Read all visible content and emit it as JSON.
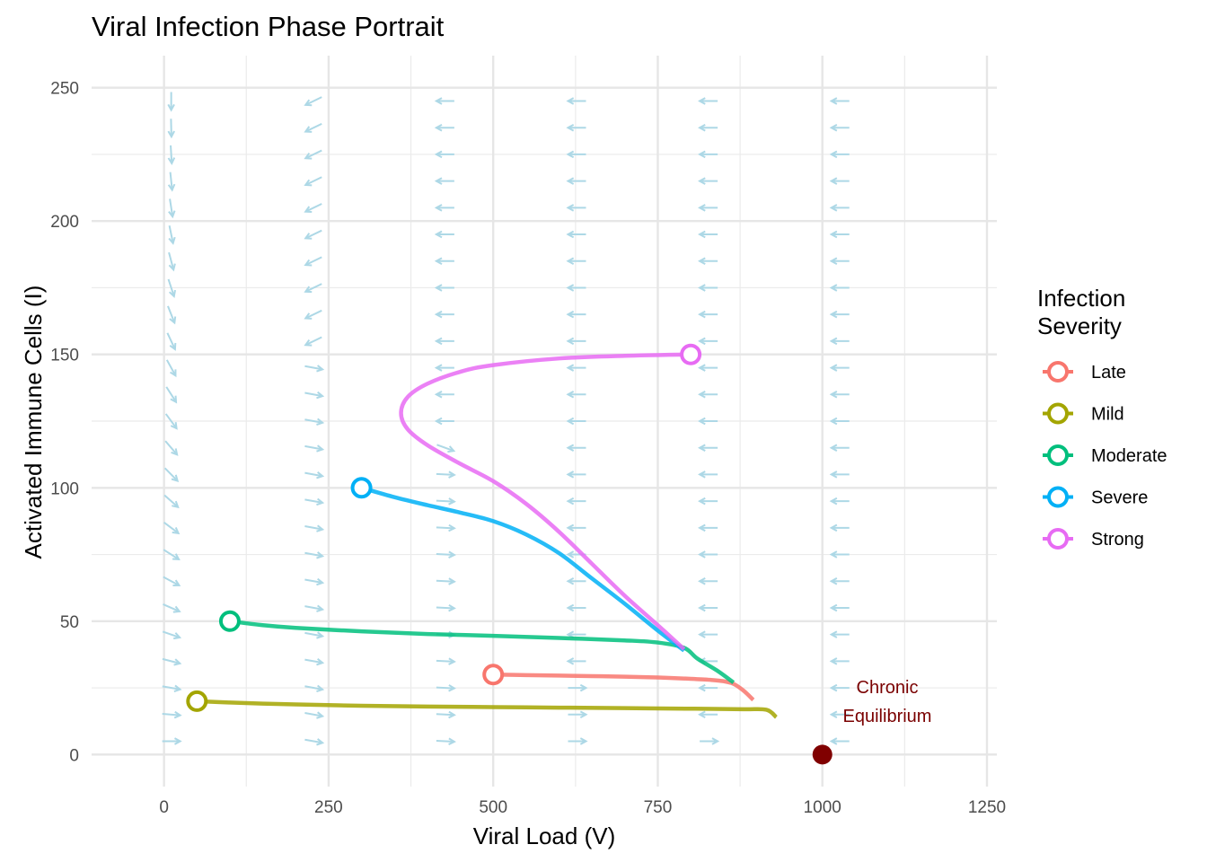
{
  "chart_data": {
    "type": "line",
    "title": "Viral Infection Phase Portrait",
    "xlabel": "Viral Load (V)",
    "ylabel": "Activated Immune Cells (I)",
    "xlim": [
      -110,
      1265
    ],
    "ylim": [
      -12,
      262
    ],
    "xticks": [
      0,
      250,
      500,
      750,
      1000,
      1250
    ],
    "yticks": [
      0,
      50,
      100,
      150,
      200,
      250
    ],
    "xtick_labels": [
      "0",
      "250",
      "500",
      "750",
      "1000",
      "1250"
    ],
    "ytick_labels": [
      "0",
      "50",
      "100",
      "150",
      "200",
      "250"
    ],
    "grid": true,
    "legend": {
      "title_lines": [
        "Infection",
        "Severity"
      ],
      "placement": "right",
      "entries": [
        "Late",
        "Mild",
        "Moderate",
        "Severe",
        "Strong"
      ]
    },
    "series": [
      {
        "name": "Late",
        "color": "#F8766D",
        "start": [
          500,
          30
        ],
        "x": [
          500,
          550,
          600,
          650,
          700,
          750,
          800,
          830,
          850,
          865,
          880,
          895
        ],
        "y": [
          30,
          29.8,
          29.6,
          29.4,
          29.2,
          28.9,
          28.4,
          28.0,
          27.5,
          26.5,
          24.0,
          20.5
        ]
      },
      {
        "name": "Mild",
        "color": "#A3A500",
        "start": [
          50,
          20
        ],
        "x": [
          50,
          100,
          150,
          200,
          300,
          400,
          500,
          600,
          700,
          800,
          880,
          915,
          930
        ],
        "y": [
          20,
          19.5,
          19.1,
          18.8,
          18.3,
          18.0,
          17.8,
          17.6,
          17.4,
          17.2,
          17.0,
          16.8,
          14.0
        ]
      },
      {
        "name": "Moderate",
        "color": "#00BF7D",
        "start": [
          100,
          50
        ],
        "x": [
          100,
          150,
          200,
          300,
          400,
          500,
          600,
          700,
          750,
          790,
          810,
          840,
          865
        ],
        "y": [
          50,
          48.5,
          47.5,
          46.2,
          45.2,
          44.5,
          43.7,
          42.8,
          42.0,
          40.0,
          36.0,
          31.5,
          27.0
        ]
      },
      {
        "name": "Severe",
        "color": "#00B0F6",
        "start": [
          300,
          100
        ],
        "x": [
          300,
          350,
          400,
          450,
          500,
          550,
          600,
          650,
          700,
          750,
          790
        ],
        "y": [
          100,
          96.5,
          93.5,
          90.7,
          87.5,
          82.5,
          75.5,
          66.0,
          56.5,
          46.5,
          39.0
        ]
      },
      {
        "name": "Strong",
        "color": "#E76BF3",
        "start": [
          800,
          150
        ],
        "x": [
          800,
          700,
          600,
          500,
          450,
          400,
          370,
          360,
          370,
          400,
          450,
          500,
          550,
          600,
          650,
          700,
          750,
          790
        ],
        "y": [
          150,
          149.5,
          148.5,
          146,
          143.5,
          139,
          134,
          128,
          122,
          116,
          109,
          102.5,
          94,
          83.5,
          71.5,
          59.5,
          48.5,
          39.5
        ]
      }
    ],
    "vector_field": {
      "color": "#ADD8E6",
      "columns": [
        {
          "x": 0,
          "y_start": 5,
          "y_end": 245,
          "y_step": 10,
          "dir": "down-slightly-right"
        },
        {
          "x": 200,
          "y_start": 5,
          "y_end": 245,
          "y_step": 10,
          "dir": "right-below-150-left-above"
        },
        {
          "x": 400,
          "y_start": 5,
          "y_end": 245,
          "y_step": 10,
          "dir": "right-below-115-left-above"
        },
        {
          "x": 600,
          "y_start": 5,
          "y_end": 245,
          "y_step": 10,
          "dir": "right-below-35-left-above"
        },
        {
          "x": 800,
          "y_start": 5,
          "y_end": 245,
          "y_step": 10,
          "dir": "right-below-10-left-above"
        },
        {
          "x": 1000,
          "y_start": 5,
          "y_end": 245,
          "y_step": 10,
          "dir": "left"
        }
      ]
    },
    "equilibrium": {
      "x": 1000,
      "y": 0,
      "color": "#800000"
    },
    "annotation": {
      "lines": [
        "Chronic",
        "Equilibrium"
      ],
      "x": 1100,
      "y": 20
    }
  }
}
